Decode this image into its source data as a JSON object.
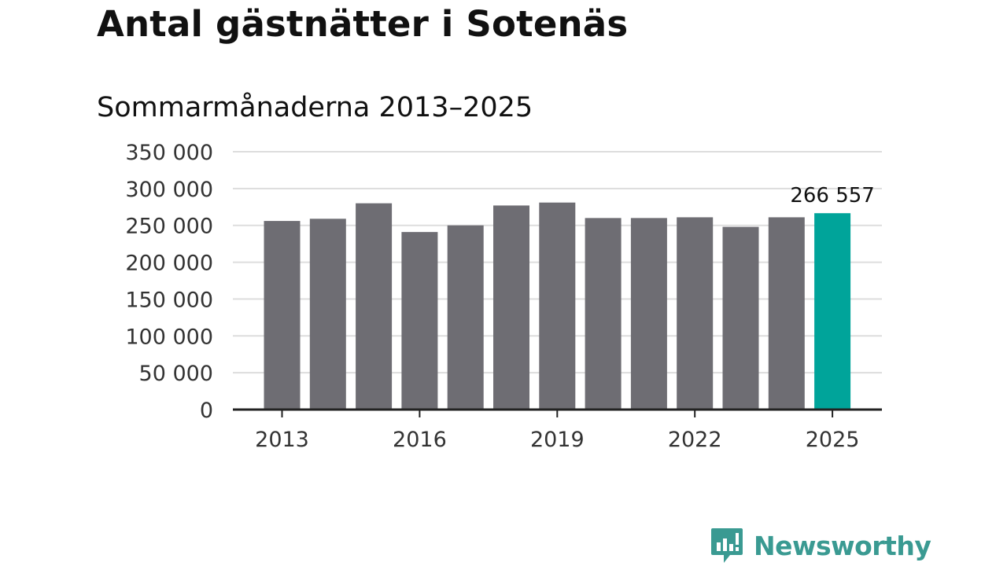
{
  "title": "Antal gästnätter i Sotenäs",
  "subtitle": "Sommarmånaderna 2013–2025",
  "brand": {
    "name": "Newsworthy",
    "logo_icon": "newsworthy-chart-bubble-icon"
  },
  "colors": {
    "bar": "#6e6d73",
    "highlight": "#00a49a",
    "grid": "#dddddd",
    "axis": "#222222",
    "text": "#333333"
  },
  "chart_data": {
    "type": "bar",
    "categories": [
      "2013",
      "2014",
      "2015",
      "2016",
      "2017",
      "2018",
      "2019",
      "2020",
      "2021",
      "2022",
      "2023",
      "2024",
      "2025"
    ],
    "values": [
      256000,
      259000,
      280000,
      241000,
      250000,
      277000,
      281000,
      260000,
      260000,
      261000,
      248000,
      261000,
      266557
    ],
    "highlight_index": 12,
    "highlight_label": "266 557",
    "ylim": [
      0,
      350000
    ],
    "yticks": [
      0,
      50000,
      100000,
      150000,
      200000,
      250000,
      300000,
      350000
    ],
    "ytick_labels": [
      "0",
      "50 000",
      "100 000",
      "150 000",
      "200 000",
      "250 000",
      "300 000",
      "350 000"
    ],
    "xtick_labels": [
      "2013",
      "2016",
      "2019",
      "2022",
      "2025"
    ],
    "xtick_indices": [
      0,
      3,
      6,
      9,
      12
    ],
    "grid": true,
    "xlabel": "",
    "ylabel": ""
  }
}
